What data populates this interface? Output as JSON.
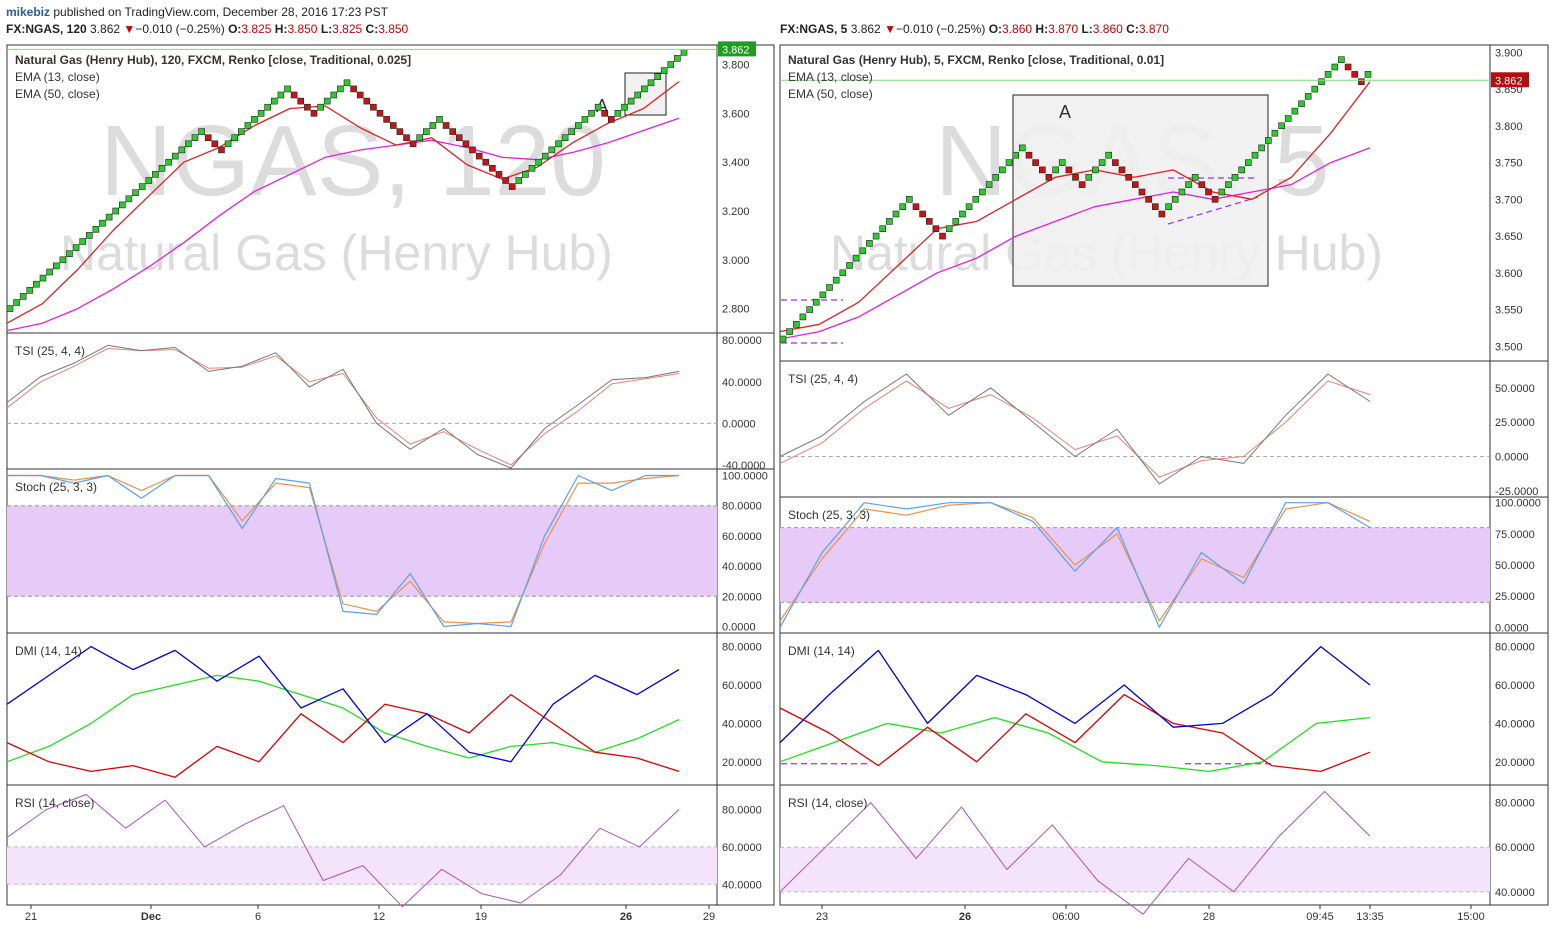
{
  "header": {
    "user": "mikebiz",
    "published_text": " published on TradingView.com, December 28, 2016 17:23 PST"
  },
  "left": {
    "symbol": "FX:NGAS, 120",
    "price": "3.862",
    "change": "−0.010 (−0.25%)",
    "o_label": "O:",
    "o": "3.825",
    "h_label": "H:",
    "h": "3.850",
    "l_label": "L:",
    "l": "3.825",
    "c_label": "C:",
    "c": "3.850",
    "title": "Natural Gas (Henry Hub), 120, FXCM, Renko [close, Traditional, 0.025]",
    "ema13": "EMA (13, close)",
    "ema50": "EMA (50, close)",
    "watermark_symbol": "NGAS, 120",
    "watermark_name": "Natural Gas (Henry Hub)",
    "annotation": "A",
    "last_price_badge": "3.862",
    "x_ticks": [
      "21",
      "Dec",
      "6",
      "12",
      "19",
      "26",
      "29"
    ],
    "price_ticks": [
      "3.800",
      "3.600",
      "3.400",
      "3.200",
      "3.000",
      "2.800"
    ],
    "tsi_label": "TSI (25, 4, 4)",
    "tsi_ticks": [
      "80.0000",
      "40.0000",
      "0.0000",
      "-40.0000"
    ],
    "stoch_label": "Stoch (25, 3, 3)",
    "stoch_ticks": [
      "100.0000",
      "80.0000",
      "60.0000",
      "40.0000",
      "20.0000",
      "0.0000"
    ],
    "dmi_label": "DMI (14, 14)",
    "dmi_ticks": [
      "80.0000",
      "60.0000",
      "40.0000",
      "20.0000"
    ],
    "rsi_label": "RSI (14, close)",
    "rsi_ticks": [
      "80.0000",
      "60.0000",
      "40.0000"
    ]
  },
  "right": {
    "symbol": "FX:NGAS, 5",
    "price": "3.862",
    "change": "−0.010 (−0.25%)",
    "o_label": "O:",
    "o": "3.860",
    "h_label": "H:",
    "h": "3.870",
    "l_label": "L:",
    "l": "3.860",
    "c_label": "C:",
    "c": "3.870",
    "title": "Natural Gas (Henry Hub), 5, FXCM, Renko [close, Traditional, 0.01]",
    "ema13": "EMA (13, close)",
    "ema50": "EMA (50, close)",
    "watermark_symbol": "NGAS, 5",
    "watermark_name": "Natural Gas (Henry Hub)",
    "annotation": "A",
    "last_price_badge": "3.862",
    "x_ticks": [
      "23",
      "26",
      "06:00",
      "28",
      "09:45",
      "13:35",
      "15:00"
    ],
    "price_ticks": [
      "3.900",
      "3.850",
      "3.800",
      "3.750",
      "3.700",
      "3.650",
      "3.600",
      "3.550",
      "3.500"
    ],
    "tsi_label": "TSI (25, 4, 4)",
    "tsi_ticks": [
      "50.0000",
      "25.0000",
      "0.0000",
      "-25.0000"
    ],
    "stoch_label": "Stoch (25, 3, 3)",
    "stoch_ticks": [
      "100.0000",
      "75.0000",
      "50.0000",
      "25.0000",
      "0.0000"
    ],
    "dmi_label": "DMI (14, 14)",
    "dmi_ticks": [
      "80.0000",
      "60.0000",
      "40.0000",
      "20.0000"
    ],
    "rsi_label": "RSI (14, close)",
    "rsi_ticks": [
      "80.0000",
      "60.0000",
      "40.0000"
    ]
  },
  "colors": {
    "up_brick": "#2ec92e",
    "down_brick": "#c81414",
    "ema13": "#e02020",
    "ema50": "#e020e0",
    "tsi": "#777777",
    "tsi_signal": "#f08070",
    "stoch_k": "#5aa0f0",
    "stoch_d": "#f0904a",
    "dmi_plus": "#0000dd",
    "dmi_minus": "#dd0000",
    "adx": "#22dd22",
    "rsi": "#b050c0",
    "stoch_band": "#e6cbf8",
    "rsi_band": "#f3e4fb",
    "price_line": "#7ddc7d"
  },
  "chart_data": [
    {
      "type": "line",
      "panel": "left-price",
      "title": "Natural Gas (Henry Hub), 120, FXCM, Renko [close, Traditional, 0.025]",
      "ylim": [
        2.7,
        3.88
      ],
      "series": [
        {
          "name": "Renko",
          "values": [
            2.8,
            2.825,
            2.85,
            2.875,
            2.9,
            2.925,
            2.95,
            2.975,
            3.0,
            3.025,
            3.05,
            3.075,
            3.1,
            3.125,
            3.15,
            3.175,
            3.2,
            3.225,
            3.25,
            3.275,
            3.3,
            3.325,
            3.35,
            3.375,
            3.4,
            3.425,
            3.45,
            3.475,
            3.5,
            3.525,
            3.5,
            3.475,
            3.45,
            3.475,
            3.5,
            3.525,
            3.55,
            3.575,
            3.6,
            3.625,
            3.65,
            3.675,
            3.7,
            3.675,
            3.65,
            3.625,
            3.6,
            3.625,
            3.65,
            3.675,
            3.7,
            3.725,
            3.7,
            3.675,
            3.65,
            3.625,
            3.6,
            3.575,
            3.55,
            3.525,
            3.5,
            3.475,
            3.5,
            3.525,
            3.55,
            3.575,
            3.55,
            3.525,
            3.5,
            3.475,
            3.45,
            3.425,
            3.4,
            3.375,
            3.35,
            3.325,
            3.3,
            3.325,
            3.35,
            3.375,
            3.4,
            3.425,
            3.45,
            3.475,
            3.5,
            3.525,
            3.55,
            3.575,
            3.6,
            3.625,
            3.6,
            3.575,
            3.6,
            3.625,
            3.65,
            3.675,
            3.7,
            3.725,
            3.75,
            3.775,
            3.8,
            3.825,
            3.85
          ]
        },
        {
          "name": "EMA (13, close)",
          "values": [
            2.74,
            2.82,
            2.96,
            3.12,
            3.26,
            3.4,
            3.46,
            3.55,
            3.62,
            3.63,
            3.54,
            3.47,
            3.5,
            3.39,
            3.33,
            3.38,
            3.48,
            3.56,
            3.62,
            3.73
          ]
        },
        {
          "name": "EMA (50, close)",
          "values": [
            2.71,
            2.74,
            2.8,
            2.88,
            2.97,
            3.07,
            3.18,
            3.28,
            3.35,
            3.42,
            3.45,
            3.47,
            3.49,
            3.46,
            3.42,
            3.41,
            3.44,
            3.48,
            3.53,
            3.58
          ]
        }
      ]
    },
    {
      "type": "line",
      "panel": "left-tsi",
      "title": "TSI (25, 4, 4)",
      "ylim": [
        -42,
        85
      ],
      "series": [
        {
          "name": "TSI",
          "values": [
            20,
            45,
            58,
            75,
            70,
            73,
            50,
            55,
            68,
            35,
            52,
            0,
            -25,
            -5,
            -30,
            -43,
            -5,
            18,
            42,
            44,
            50
          ]
        },
        {
          "name": "Signal",
          "values": [
            15,
            40,
            55,
            72,
            70,
            71,
            53,
            54,
            65,
            40,
            48,
            5,
            -20,
            -8,
            -25,
            -40,
            -10,
            12,
            38,
            43,
            48
          ]
        }
      ]
    },
    {
      "type": "line",
      "panel": "left-stoch",
      "title": "Stoch (25, 3, 3)",
      "ylim": [
        -3,
        103
      ],
      "series": [
        {
          "name": "%K",
          "values": [
            100,
            100,
            95,
            100,
            85,
            100,
            100,
            65,
            98,
            95,
            10,
            8,
            35,
            0,
            2,
            0,
            60,
            100,
            90,
            100,
            100
          ]
        },
        {
          "name": "%D",
          "values": [
            100,
            100,
            97,
            100,
            90,
            100,
            100,
            70,
            95,
            92,
            15,
            10,
            30,
            3,
            2,
            3,
            55,
            95,
            95,
            98,
            100
          ]
        }
      ]
    },
    {
      "type": "line",
      "panel": "left-dmi",
      "title": "DMI (14, 14)",
      "ylim": [
        10,
        85
      ],
      "series": [
        {
          "name": "+DI",
          "values": [
            50,
            65,
            80,
            68,
            78,
            62,
            75,
            48,
            58,
            30,
            45,
            25,
            20,
            50,
            65,
            55,
            68
          ]
        },
        {
          "name": "-DI",
          "values": [
            30,
            20,
            15,
            18,
            12,
            28,
            20,
            45,
            30,
            50,
            45,
            35,
            55,
            40,
            25,
            22,
            15
          ]
        },
        {
          "name": "ADX",
          "values": [
            20,
            28,
            40,
            55,
            60,
            65,
            62,
            55,
            48,
            35,
            28,
            22,
            28,
            30,
            25,
            32,
            42
          ]
        }
      ]
    },
    {
      "type": "line",
      "panel": "left-rsi",
      "title": "RSI (14, close)",
      "ylim": [
        30,
        92
      ],
      "series": [
        {
          "name": "RSI",
          "values": [
            65,
            80,
            88,
            70,
            85,
            60,
            72,
            82,
            42,
            50,
            28,
            48,
            35,
            30,
            45,
            70,
            60,
            80
          ]
        }
      ]
    },
    {
      "type": "line",
      "panel": "right-price",
      "title": "Natural Gas (Henry Hub), 5, FXCM, Renko [close, Traditional, 0.01]",
      "ylim": [
        3.48,
        3.91
      ],
      "series": [
        {
          "name": "Renko",
          "values": [
            3.51,
            3.52,
            3.53,
            3.54,
            3.55,
            3.56,
            3.57,
            3.58,
            3.59,
            3.6,
            3.61,
            3.62,
            3.63,
            3.64,
            3.65,
            3.66,
            3.67,
            3.68,
            3.69,
            3.7,
            3.69,
            3.68,
            3.67,
            3.66,
            3.65,
            3.66,
            3.67,
            3.68,
            3.69,
            3.7,
            3.71,
            3.72,
            3.73,
            3.74,
            3.75,
            3.76,
            3.77,
            3.76,
            3.75,
            3.74,
            3.73,
            3.74,
            3.75,
            3.74,
            3.73,
            3.72,
            3.73,
            3.74,
            3.75,
            3.76,
            3.75,
            3.74,
            3.73,
            3.72,
            3.71,
            3.7,
            3.69,
            3.68,
            3.69,
            3.7,
            3.71,
            3.72,
            3.73,
            3.72,
            3.71,
            3.7,
            3.71,
            3.72,
            3.73,
            3.74,
            3.75,
            3.76,
            3.77,
            3.78,
            3.79,
            3.8,
            3.81,
            3.82,
            3.83,
            3.84,
            3.85,
            3.86,
            3.87,
            3.88,
            3.89,
            3.88,
            3.87,
            3.86,
            3.87
          ]
        },
        {
          "name": "EMA (13, close)",
          "values": [
            3.52,
            3.53,
            3.56,
            3.61,
            3.66,
            3.67,
            3.7,
            3.73,
            3.74,
            3.73,
            3.74,
            3.71,
            3.7,
            3.73,
            3.79,
            3.86
          ]
        },
        {
          "name": "EMA (50, close)",
          "values": [
            3.51,
            3.52,
            3.54,
            3.57,
            3.6,
            3.62,
            3.65,
            3.67,
            3.69,
            3.7,
            3.71,
            3.7,
            3.71,
            3.72,
            3.75,
            3.77
          ]
        }
      ]
    },
    {
      "type": "line",
      "panel": "right-tsi",
      "title": "TSI (25, 4, 4)",
      "ylim": [
        -28,
        68
      ],
      "series": [
        {
          "name": "TSI",
          "values": [
            0,
            15,
            40,
            60,
            30,
            50,
            25,
            0,
            20,
            -20,
            0,
            -5,
            30,
            60,
            40
          ]
        },
        {
          "name": "Signal",
          "values": [
            -5,
            10,
            35,
            55,
            35,
            45,
            28,
            5,
            15,
            -15,
            -3,
            0,
            25,
            55,
            45
          ]
        }
      ]
    },
    {
      "type": "line",
      "panel": "right-stoch",
      "title": "Stoch (25, 3, 3)",
      "ylim": [
        -3,
        103
      ],
      "series": [
        {
          "name": "%K",
          "values": [
            0,
            60,
            100,
            95,
            100,
            100,
            85,
            45,
            80,
            0,
            60,
            35,
            100,
            100,
            80
          ]
        },
        {
          "name": "%D",
          "values": [
            5,
            55,
            95,
            90,
            98,
            100,
            88,
            50,
            75,
            5,
            55,
            40,
            95,
            100,
            85
          ]
        }
      ]
    },
    {
      "type": "line",
      "panel": "right-dmi",
      "title": "DMI (14, 14)",
      "ylim": [
        10,
        85
      ],
      "series": [
        {
          "name": "+DI",
          "values": [
            30,
            55,
            78,
            40,
            65,
            55,
            40,
            60,
            38,
            40,
            55,
            80,
            60
          ]
        },
        {
          "name": "-DI",
          "values": [
            48,
            35,
            18,
            38,
            20,
            45,
            30,
            55,
            40,
            35,
            18,
            15,
            25
          ]
        },
        {
          "name": "ADX",
          "values": [
            20,
            30,
            40,
            35,
            43,
            35,
            20,
            18,
            15,
            20,
            40,
            43
          ]
        }
      ]
    },
    {
      "type": "line",
      "panel": "right-rsi",
      "title": "RSI (14, close)",
      "ylim": [
        35,
        87
      ],
      "series": [
        {
          "name": "RSI",
          "values": [
            40,
            60,
            80,
            55,
            78,
            50,
            70,
            45,
            30,
            55,
            40,
            65,
            85,
            65
          ]
        }
      ]
    }
  ]
}
